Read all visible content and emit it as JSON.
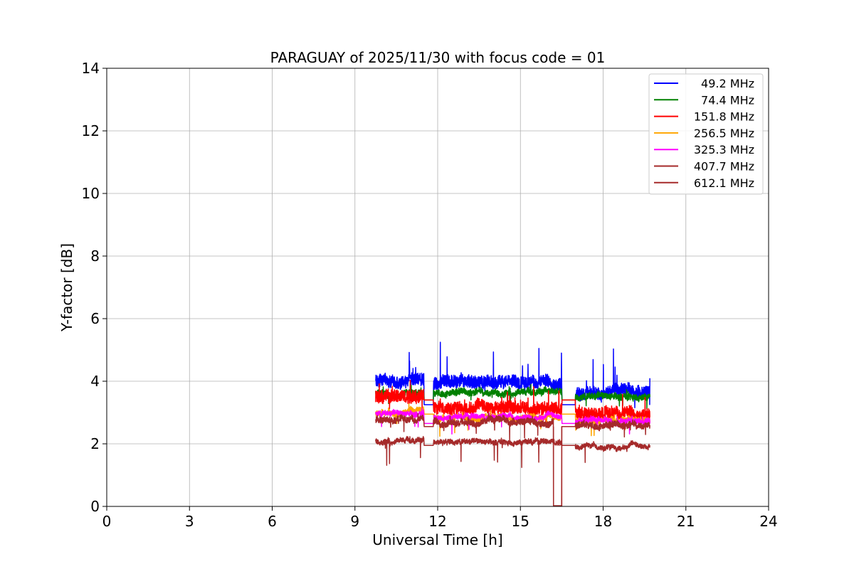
{
  "chart_data": {
    "type": "line",
    "title": "PARAGUAY of 2025/11/30 with focus code = 01",
    "xlabel": "Universal Time [h]",
    "ylabel": "Y-factor [dB]",
    "xlim": [
      0,
      24
    ],
    "ylim": [
      0,
      14
    ],
    "xticks": [
      0,
      3,
      6,
      9,
      12,
      15,
      18,
      21,
      24
    ],
    "yticks": [
      0,
      2,
      4,
      6,
      8,
      10,
      12,
      14
    ],
    "xtick_labels": [
      "0",
      "3",
      "6",
      "9",
      "12",
      "15",
      "18",
      "21",
      "24"
    ],
    "ytick_labels": [
      "0",
      "2",
      "4",
      "6",
      "8",
      "10",
      "12",
      "14"
    ],
    "grid": true,
    "legend_position": "top-right",
    "observation_segments": [
      [
        9.75,
        11.5
      ],
      [
        11.85,
        16.5
      ],
      [
        17.0,
        19.7
      ]
    ],
    "series": [
      {
        "name": "49.2 MHz",
        "label": " 49.2 MHz",
        "color": "#0000ff",
        "base": [
          4.0,
          3.95,
          3.65
        ],
        "noise": 0.4,
        "spikes_up": 1.2,
        "spikes_down": 0.3,
        "gap_level": 3.25
      },
      {
        "name": "74.4 MHz",
        "label": " 74.4 MHz",
        "color": "#008000",
        "base": [
          3.6,
          3.65,
          3.5
        ],
        "noise": 0.2,
        "spikes_up": 0.2,
        "spikes_down": 0.3,
        "gap_level": 3.4
      },
      {
        "name": "151.8 MHz",
        "label": "151.8 MHz",
        "color": "#ff0000",
        "base": [
          3.5,
          3.15,
          2.95
        ],
        "noise": 0.4,
        "spikes_up": 0.6,
        "spikes_down": 0.5,
        "gap_level": 3.4
      },
      {
        "name": "256.5 MHz",
        "label": "256.5 MHz",
        "color": "#ffa500",
        "base": [
          3.0,
          2.85,
          2.75
        ],
        "noise": 0.15,
        "spikes_up": 0.15,
        "spikes_down": 0.5,
        "gap_level": 2.95
      },
      {
        "name": "325.3 MHz",
        "label": "325.3 MHz",
        "color": "#ff00ff",
        "base": [
          2.95,
          2.85,
          2.75
        ],
        "noise": 0.15,
        "spikes_up": 0.15,
        "spikes_down": 0.5,
        "gap_level": 2.65
      },
      {
        "name": "407.7 MHz",
        "label": "407.7 MHz",
        "color": "#a52a2a",
        "base": [
          2.75,
          2.7,
          2.6
        ],
        "noise": 0.2,
        "spikes_up": 0.15,
        "spikes_down": 0.5,
        "gap_level": 2.55,
        "dropout": [
          16.2,
          16.5
        ]
      },
      {
        "name": "612.1 MHz",
        "label": "612.1 MHz",
        "color": "#a52a2a",
        "base": [
          2.1,
          2.05,
          1.9
        ],
        "noise": 0.15,
        "spikes_up": 0.1,
        "spikes_down": 0.8,
        "gap_level": 1.95
      }
    ]
  }
}
